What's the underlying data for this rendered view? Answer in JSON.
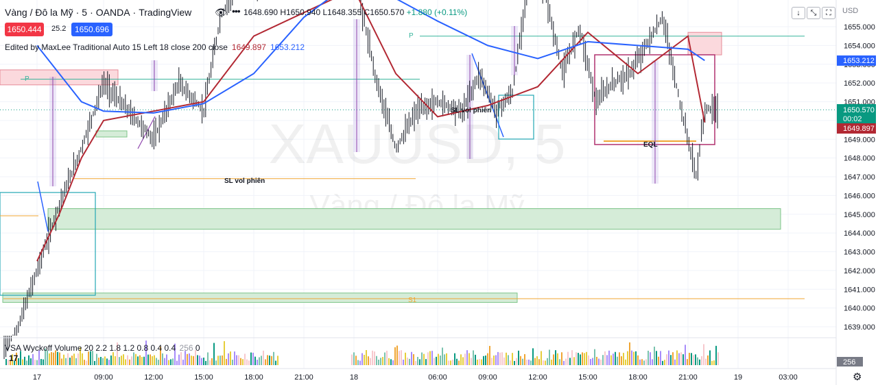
{
  "header": {
    "symbol_name": "Vàng / Đô la Mỹ",
    "interval": "5",
    "exchange": "OANDA",
    "platform": "TradingView",
    "ohlc": {
      "open": "1648.690",
      "high": "H1650.940",
      "low": "L1648.355",
      "close": "C1650.570",
      "change": "+1.880 (+0.11%)"
    }
  },
  "quote": {
    "sell": "1650.444",
    "spread": "25.2",
    "buy": "1650.696"
  },
  "indicator": {
    "label": "Edited by MaxLee Traditional Auto 15 Left 18 close 200 close",
    "value_red": "1649.897",
    "value_blue": "1653.212"
  },
  "watermark": {
    "symbol": "XAUUSD, 5",
    "name": "Vàng / Đô la Mỹ"
  },
  "price_axis": {
    "currency": "USD",
    "labels": [
      "1655.000",
      "1654.000",
      "1653.000",
      "1652.000",
      "1651.000",
      "1650.000",
      "1649.000",
      "1648.000",
      "1647.000",
      "1646.000",
      "1645.000",
      "1644.000",
      "1643.000",
      "1642.000",
      "1641.000",
      "1640.000",
      "1639.000"
    ],
    "tag_blue": "1653.212",
    "tag_last": "1650.570",
    "tag_countdown": "00:02",
    "tag_red": "1649.897"
  },
  "time_axis": {
    "labels": [
      "17",
      "09:00",
      "12:00",
      "15:00",
      "18:00",
      "21:00",
      "18",
      "06:00",
      "09:00",
      "12:00",
      "15:00",
      "18:00",
      "21:00",
      "19",
      "03:00"
    ]
  },
  "annotations": {
    "p_upper": "P",
    "p_left": "P",
    "sl_left": "SL vol phiên",
    "sl_mid": "SL vol phiên",
    "eql": "EQL",
    "s1": "S1"
  },
  "volume": {
    "title": "VSA Wyckoff Volume 20 2.2 1.8 1.2 0.8 0.4 0.4",
    "value": "256",
    "zero": "0",
    "tag": "256"
  },
  "colors": {
    "up": "#089981",
    "down": "#f23645",
    "ma_red": "#b22833",
    "ma_blue": "#2962ff",
    "zone_green": "#b9dfbf",
    "zone_red": "#f7c8cd",
    "zone_teal": "#22a6b3",
    "level_orange": "#f0a532",
    "pivot_teal": "#33b39a",
    "bracket_purple": "#8e44ad"
  },
  "chart_data": {
    "type": "line",
    "price_range": [
      1638.5,
      1655.8
    ],
    "series": [
      {
        "name": "close",
        "x": [
          "17 00:00",
          "17 03:00",
          "17 06:00",
          "17 09:00",
          "17 10:30",
          "17 12:00",
          "17 13:30",
          "17 15:00",
          "17 16:00",
          "17 17:30",
          "17 18:30",
          "17 19:30",
          "18 00:00",
          "18 01:30",
          "18 03:00",
          "18 04:30",
          "18 06:00",
          "18 07:30",
          "18 08:30",
          "18 09:30",
          "18 10:30",
          "18 11:30",
          "18 12:30",
          "18 13:30",
          "18 14:30",
          "18 15:30",
          "18 16:30",
          "18 17:30",
          "18 18:30",
          "18 19:30",
          "18 20:30",
          "18 21:30",
          "18 22:00"
        ],
        "values": [
          1642.0,
          1645.5,
          1648.5,
          1652.0,
          1650.5,
          1649.0,
          1652.0,
          1650.5,
          1655.5,
          1658.0,
          1657.0,
          1659.0,
          1658.0,
          1652.5,
          1648.5,
          1650.5,
          1651.0,
          1650.5,
          1652.5,
          1650.5,
          1651.5,
          1658.0,
          1656.5,
          1652.5,
          1655.0,
          1651.0,
          1652.0,
          1652.5,
          1654.0,
          1655.5,
          1651.0,
          1647.0,
          1650.6
        ]
      },
      {
        "name": "",
        "x": [
          "17 00:00",
          "17 03:00",
          "17 06:00",
          "17 09:00",
          "17 12:00",
          "17 15:00",
          "17 18:00",
          "18 00:00",
          "18 03:00",
          "18 06:00",
          "18 09:00",
          "18 12:00",
          "18 15:00",
          "18 18:00",
          "18 21:00",
          "18 22:00"
        ],
        "values": [
          1642.5,
          1645.0,
          1648.0,
          1650.0,
          1650.5,
          1651.0,
          1654.5,
          1657.0,
          1652.5,
          1650.2,
          1650.8,
          1651.8,
          1654.7,
          1652.5,
          1654.5,
          1649.9
        ]
      },
      {
        "name": "",
        "x": [
          "17 00:00",
          "17 03:00",
          "17 06:00",
          "17 09:00",
          "17 12:00",
          "17 15:00",
          "17 18:00",
          "17 21:00",
          "18 00:00",
          "18 03:00",
          "18 06:00",
          "18 09:00",
          "18 12:00",
          "18 15:00",
          "18 18:00",
          "18 21:00",
          "18 22:00"
        ],
        "values": [
          1654.0,
          1652.5,
          1651.0,
          1650.5,
          1650.4,
          1650.9,
          1652.5,
          1655.5,
          1657.5,
          1656.5,
          1655.3,
          1654.0,
          1653.3,
          1654.2,
          1654.0,
          1653.8,
          1653.2
        ]
      }
    ],
    "levels": [
      {
        "label": "P",
        "price": 1654.5,
        "from": "18 04:00",
        "to": "19 04:00",
        "color": "#33b39a"
      },
      {
        "label": "P",
        "price": 1652.2,
        "from": "17 00:00",
        "to": "18 04:00",
        "color": "#33b39a"
      },
      {
        "label": "SL vol phiên",
        "price": 1646.9,
        "from": "17 06:00",
        "to": "18 06:00",
        "color": "#f0a532"
      },
      {
        "label": "S1",
        "price": 1640.5,
        "from": "17 00:00",
        "to": "19 04:00",
        "color": "#f0a532"
      },
      {
        "label": "EQL",
        "price": 1648.9,
        "from": "18 15:30",
        "to": "18 21:30",
        "color": "#f0a532"
      }
    ],
    "zones": [
      {
        "kind": "demand",
        "top": 1645.3,
        "bottom": 1644.2,
        "from": "17 00:00",
        "to": "19 00:00"
      },
      {
        "kind": "demand",
        "top": 1640.8,
        "bottom": 1640.3,
        "from": "17 00:00",
        "to": "18 10:00"
      },
      {
        "kind": "supply",
        "top": 1652.7,
        "bottom": 1651.9,
        "from": "17 00:00",
        "to": "17 11:00"
      },
      {
        "kind": "supply",
        "top": 1654.7,
        "bottom": 1653.5,
        "from": "18 20:00",
        "to": "18 21:30"
      }
    ],
    "grid": true,
    "legend": "top-left"
  }
}
